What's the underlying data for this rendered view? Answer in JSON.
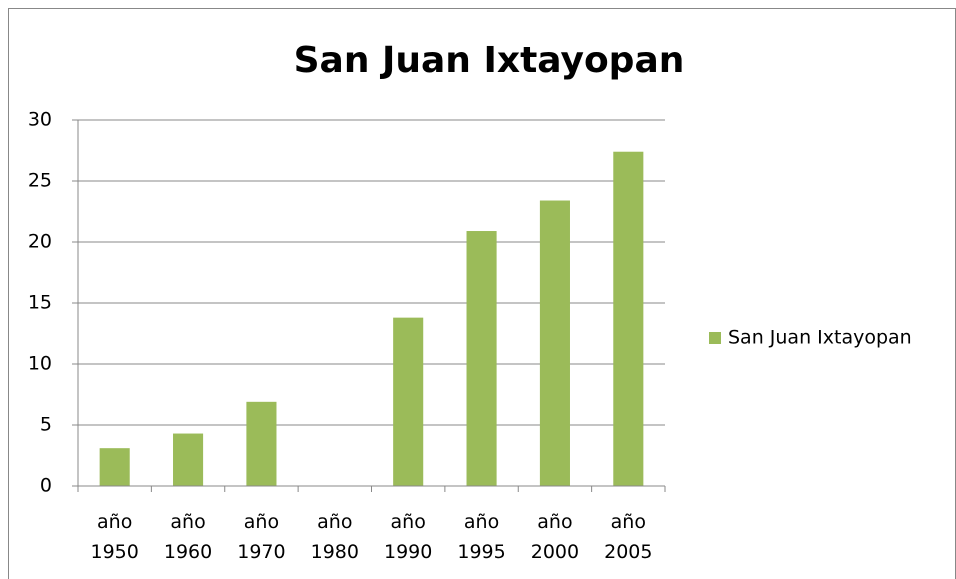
{
  "chart_data": {
    "type": "bar",
    "title": "San Juan Ixtayopan",
    "categories": [
      "año 1950",
      "año 1960",
      "año 1970",
      "año 1980",
      "año 1990",
      "año 1995",
      "año 2000",
      "año 2005"
    ],
    "series": [
      {
        "name": "San Juan Ixtayopan",
        "color": "#9bbb59",
        "values": [
          3.1,
          4.3,
          6.9,
          0,
          13.8,
          20.9,
          23.4,
          27.4
        ]
      }
    ],
    "ylim": [
      0,
      30
    ],
    "yticks": [
      0,
      5,
      10,
      15,
      20,
      25,
      30
    ],
    "grid": true,
    "legend": "right"
  }
}
